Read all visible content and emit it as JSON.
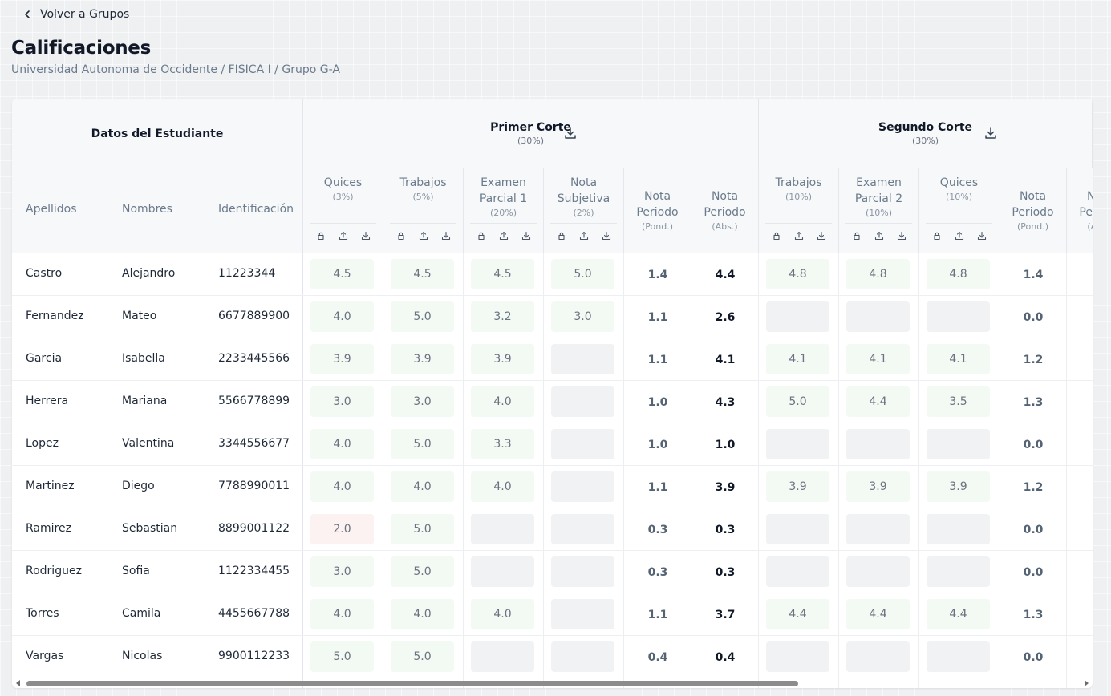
{
  "nav": {
    "back_label": "Volver a Grupos"
  },
  "page": {
    "title": "Calificaciones",
    "breadcrumb": "Universidad Autonoma de Occidente / FISICA I / Grupo G-A"
  },
  "student_group": {
    "title": "Datos del Estudiante",
    "columns": [
      "Apellidos",
      "Nombres",
      "Identificación"
    ]
  },
  "groups": [
    {
      "title": "Primer Corte",
      "weight": "(30%)"
    },
    {
      "title": "Segundo Corte",
      "weight": "(30%)"
    }
  ],
  "grade_columns": [
    {
      "name": "Quices",
      "weight": "(3%)",
      "kind": "input"
    },
    {
      "name": "Trabajos",
      "weight": "(5%)",
      "kind": "input"
    },
    {
      "name": "Examen Parcial 1",
      "weight": "(20%)",
      "kind": "input"
    },
    {
      "name": "Nota Subjetiva",
      "weight": "(2%)",
      "kind": "input"
    },
    {
      "name": "Nota Periodo",
      "weight": "(Pond.)",
      "kind": "pond"
    },
    {
      "name": "Nota Periodo",
      "weight": "(Abs.)",
      "kind": "abs"
    },
    {
      "name": "Trabajos",
      "weight": "(10%)",
      "kind": "input"
    },
    {
      "name": "Examen Parcial 2",
      "weight": "(10%)",
      "kind": "input"
    },
    {
      "name": "Quices",
      "weight": "(10%)",
      "kind": "input"
    },
    {
      "name": "Nota Periodo",
      "weight": "(Pond.)",
      "kind": "pond"
    },
    {
      "name": "Nota Periodo",
      "weight": "(Abs.)",
      "kind": "abs"
    }
  ],
  "students": [
    {
      "apellidos": "Castro",
      "nombres": "Alejandro",
      "id": "11223344",
      "grades": [
        "4.5",
        "4.5",
        "4.5",
        "5.0",
        "1.4",
        "4.4",
        "4.8",
        "4.8",
        "4.8",
        "1.4",
        ""
      ]
    },
    {
      "apellidos": "Fernandez",
      "nombres": "Mateo",
      "id": "6677889900",
      "grades": [
        "4.0",
        "5.0",
        "3.2",
        "3.0",
        "1.1",
        "2.6",
        "",
        "",
        "",
        "0.0",
        ""
      ]
    },
    {
      "apellidos": "Garcia",
      "nombres": "Isabella",
      "id": "2233445566",
      "grades": [
        "3.9",
        "3.9",
        "3.9",
        "",
        "1.1",
        "4.1",
        "4.1",
        "4.1",
        "4.1",
        "1.2",
        ""
      ]
    },
    {
      "apellidos": "Herrera",
      "nombres": "Mariana",
      "id": "5566778899",
      "grades": [
        "3.0",
        "3.0",
        "4.0",
        "",
        "1.0",
        "4.3",
        "5.0",
        "4.4",
        "3.5",
        "1.3",
        ""
      ]
    },
    {
      "apellidos": "Lopez",
      "nombres": "Valentina",
      "id": "3344556677",
      "grades": [
        "4.0",
        "5.0",
        "3.3",
        "",
        "1.0",
        "1.0",
        "",
        "",
        "",
        "0.0",
        ""
      ]
    },
    {
      "apellidos": "Martinez",
      "nombres": "Diego",
      "id": "7788990011",
      "grades": [
        "4.0",
        "4.0",
        "4.0",
        "",
        "1.1",
        "3.9",
        "3.9",
        "3.9",
        "3.9",
        "1.2",
        ""
      ]
    },
    {
      "apellidos": "Ramirez",
      "nombres": "Sebastian",
      "id": "8899001122",
      "grades": [
        "2.0",
        "5.0",
        "",
        "",
        "0.3",
        "0.3",
        "",
        "",
        "",
        "0.0",
        ""
      ]
    },
    {
      "apellidos": "Rodriguez",
      "nombres": "Sofia",
      "id": "1122334455",
      "grades": [
        "3.0",
        "5.0",
        "",
        "",
        "0.3",
        "0.3",
        "",
        "",
        "",
        "0.0",
        ""
      ]
    },
    {
      "apellidos": "Torres",
      "nombres": "Camila",
      "id": "4455667788",
      "grades": [
        "4.0",
        "4.0",
        "4.0",
        "",
        "1.1",
        "3.7",
        "4.4",
        "4.4",
        "4.4",
        "1.3",
        ""
      ]
    },
    {
      "apellidos": "Vargas",
      "nombres": "Nicolas",
      "id": "9900112233",
      "grades": [
        "5.0",
        "5.0",
        "",
        "",
        "0.4",
        "0.4",
        "",
        "",
        "",
        "0.0",
        ""
      ]
    }
  ],
  "icons": {
    "back": "chevron-left-icon",
    "download": "download-icon",
    "lock": "lock-icon",
    "upload": "upload-icon"
  },
  "colors": {
    "filled_cell": "#f3f9f3",
    "empty_cell": "#f1f2f4",
    "low_cell": "#fdf2f2"
  }
}
